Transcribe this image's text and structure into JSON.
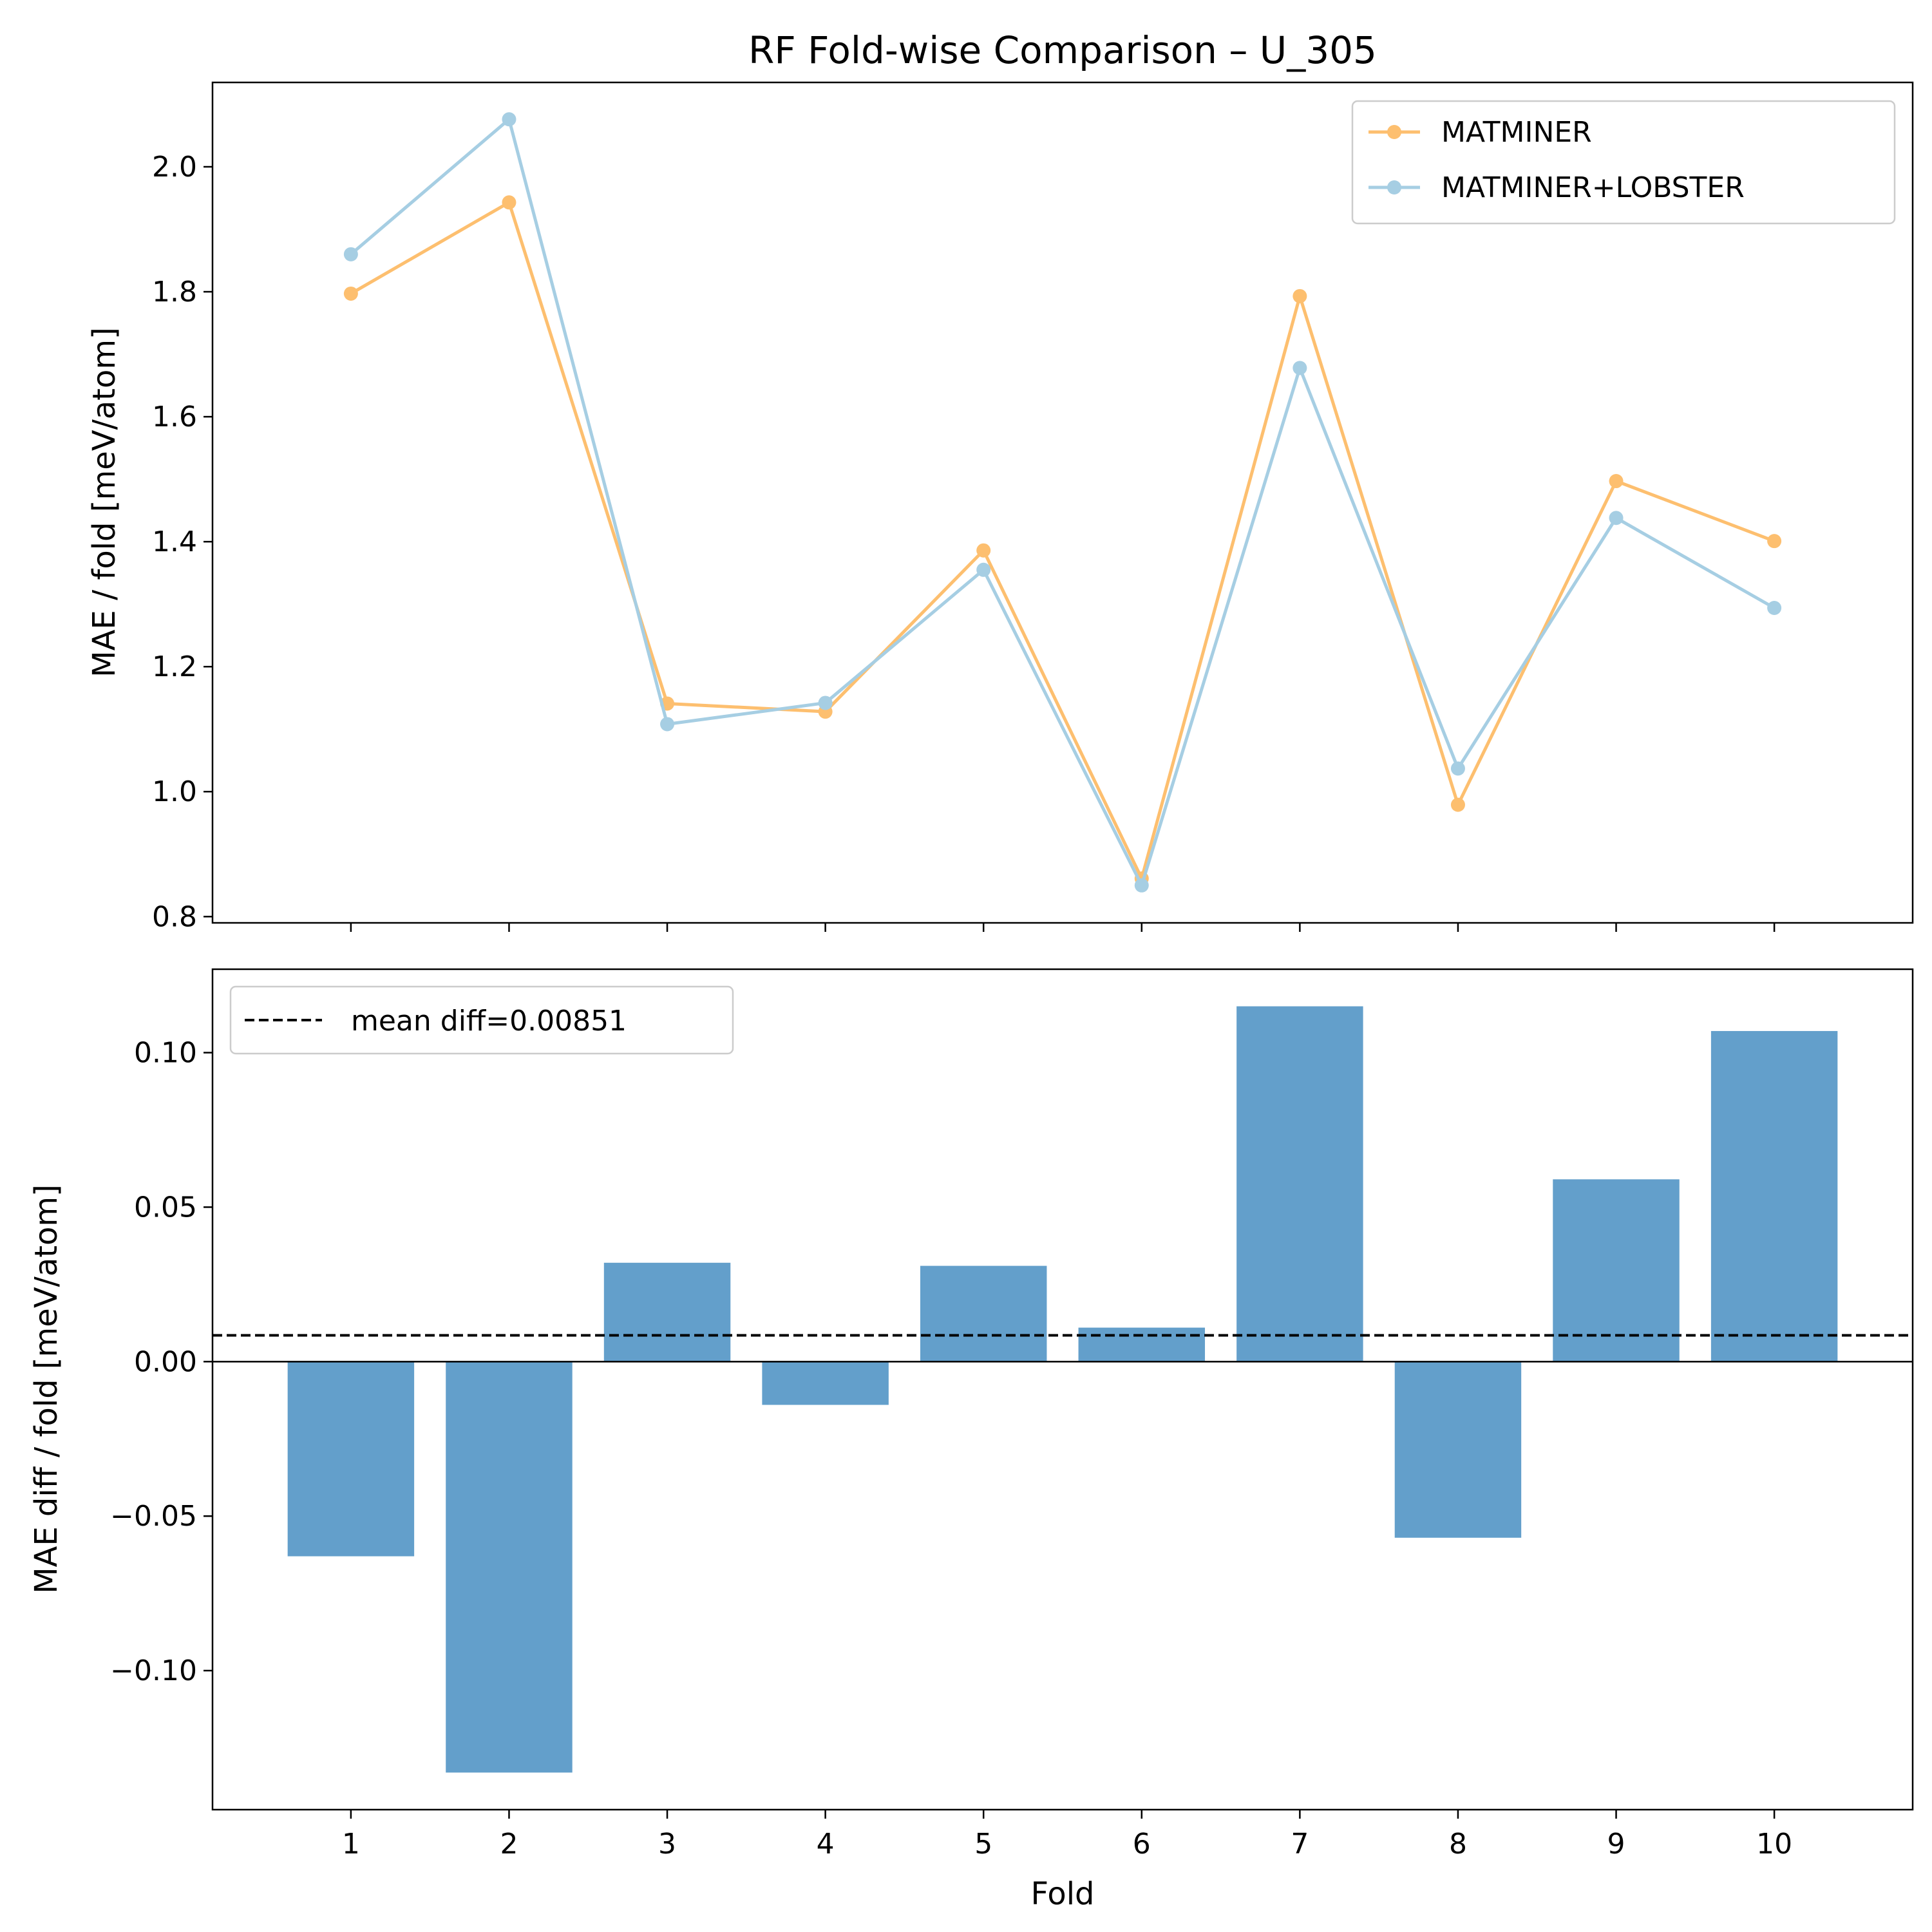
{
  "title": "RF Fold-wise Comparison – U_305",
  "chart_data": [
    {
      "type": "line",
      "ylabel": "MAE / fold [meV/atom]",
      "xlabel": "",
      "x": [
        1,
        2,
        3,
        4,
        5,
        6,
        7,
        8,
        9,
        10
      ],
      "ylim": [
        0.79,
        2.135
      ],
      "yticks": [
        0.8,
        1.0,
        1.2,
        1.4,
        1.6,
        1.8,
        2.0
      ],
      "ytick_labels": [
        "0.8",
        "1.0",
        "1.2",
        "1.4",
        "1.6",
        "1.8",
        "2.0"
      ],
      "grid": false,
      "legend": "top-right",
      "series": [
        {
          "name": "MATMINER",
          "color": "#fdbf6f",
          "values": [
            1.797,
            1.943,
            1.141,
            1.128,
            1.386,
            0.861,
            1.793,
            0.979,
            1.497,
            1.401
          ]
        },
        {
          "name": "MATMINER+LOBSTER",
          "color": "#a6cee3",
          "values": [
            1.86,
            2.076,
            1.108,
            1.142,
            1.355,
            0.85,
            1.678,
            1.037,
            1.438,
            1.294
          ]
        }
      ]
    },
    {
      "type": "bar",
      "ylabel": "MAE diff / fold [meV/atom]",
      "xlabel": "Fold",
      "categories": [
        "1",
        "2",
        "3",
        "4",
        "5",
        "6",
        "7",
        "8",
        "9",
        "10"
      ],
      "values": [
        -0.063,
        -0.133,
        0.032,
        -0.014,
        0.031,
        0.011,
        0.115,
        -0.057,
        0.059,
        0.107
      ],
      "bar_color": "#639fcb",
      "ylim": [
        -0.145,
        0.127
      ],
      "yticks": [
        -0.1,
        -0.05,
        0.0,
        0.05,
        0.1
      ],
      "ytick_labels": [
        "−0.10",
        "−0.05",
        "0.00",
        "0.05",
        "0.10"
      ],
      "reference_line": {
        "label": "mean diff=0.00851",
        "value": 0.00851,
        "style": "dashed",
        "color": "#000000"
      },
      "zero_line": true,
      "grid": false,
      "legend": "top-left"
    }
  ]
}
